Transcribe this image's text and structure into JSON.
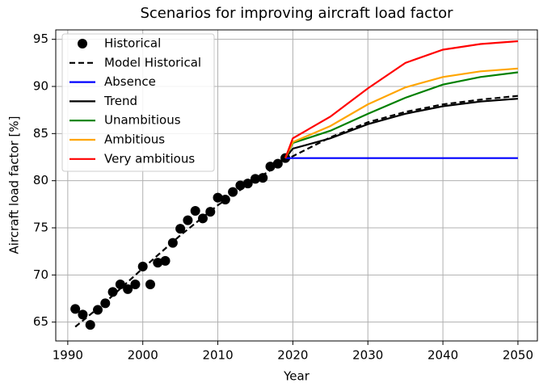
{
  "chart_data": {
    "type": "line",
    "title": "Scenarios for improving aircraft load factor",
    "x_label": "Year",
    "y_label": "Aircraft load factor [%]",
    "xlim": [
      1988.4,
      2052.7
    ],
    "ylim": [
      63,
      96
    ],
    "xticks": [
      1990,
      2000,
      2010,
      2020,
      2030,
      2040,
      2050
    ],
    "yticks": [
      65,
      70,
      75,
      80,
      85,
      90,
      95
    ],
    "grid": true,
    "legend": "upper left",
    "series": [
      {
        "name": "Historical",
        "color": "#000000",
        "style": "markers",
        "x": [
          1991,
          1992,
          1993,
          1994,
          1995,
          1996,
          1997,
          1998,
          1999,
          2000,
          2001,
          2002,
          2003,
          2004,
          2005,
          2006,
          2007,
          2008,
          2009,
          2010,
          2011,
          2012,
          2013,
          2014,
          2015,
          2016,
          2017,
          2018,
          2019
        ],
        "values": [
          66.4,
          65.8,
          64.7,
          66.3,
          67.0,
          68.2,
          69.0,
          68.5,
          69.0,
          70.9,
          69.0,
          71.3,
          71.5,
          73.4,
          74.9,
          75.8,
          76.8,
          76.0,
          76.7,
          78.2,
          78.0,
          78.8,
          79.5,
          79.7,
          80.2,
          80.3,
          81.5,
          81.8,
          82.4
        ]
      },
      {
        "name": "Model Historical",
        "color": "#000000",
        "style": "dashed",
        "x": [
          1991,
          1995,
          2000,
          2005,
          2010,
          2015,
          2020,
          2025,
          2030,
          2035,
          2040,
          2045,
          2050
        ],
        "values": [
          64.5,
          67.1,
          70.7,
          74.2,
          77.4,
          80.1,
          82.6,
          84.6,
          86.2,
          87.3,
          88.1,
          88.6,
          89.0
        ]
      },
      {
        "name": "Absence",
        "color": "#0000ff",
        "style": "solid",
        "x": [
          2019,
          2050
        ],
        "values": [
          82.4,
          82.4
        ]
      },
      {
        "name": "Trend",
        "color": "#000000",
        "style": "solid",
        "x": [
          2019,
          2020,
          2025,
          2030,
          2035,
          2040,
          2045,
          2050
        ],
        "values": [
          82.4,
          83.4,
          84.5,
          86.0,
          87.1,
          87.9,
          88.4,
          88.7
        ]
      },
      {
        "name": "Unambitious",
        "color": "#008000",
        "style": "solid",
        "x": [
          2019,
          2020,
          2025,
          2030,
          2035,
          2040,
          2045,
          2050
        ],
        "values": [
          82.4,
          84.0,
          85.3,
          87.1,
          88.8,
          90.2,
          91.0,
          91.5
        ]
      },
      {
        "name": "Ambitious",
        "color": "#ffa500",
        "style": "solid",
        "x": [
          2019,
          2020,
          2025,
          2030,
          2035,
          2040,
          2045,
          2050
        ],
        "values": [
          82.4,
          84.1,
          85.8,
          88.1,
          89.9,
          91.0,
          91.6,
          91.9
        ]
      },
      {
        "name": "Very ambitious",
        "color": "#ff0000",
        "style": "solid",
        "x": [
          2019,
          2020,
          2025,
          2030,
          2035,
          2040,
          2045,
          2050
        ],
        "values": [
          82.4,
          84.5,
          86.8,
          89.8,
          92.5,
          93.9,
          94.5,
          94.8
        ]
      }
    ]
  }
}
